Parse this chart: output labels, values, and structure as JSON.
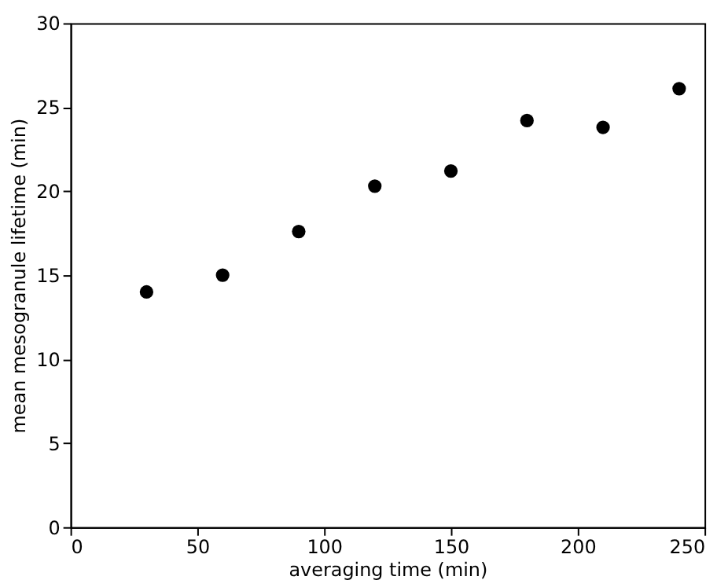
{
  "chart_data": {
    "type": "scatter",
    "xlabel": "averaging time (min)",
    "ylabel": "mean mesogranule lifetime (min)",
    "x": [
      30,
      60,
      90,
      120,
      150,
      180,
      210,
      240
    ],
    "series": [
      {
        "color": "#000000",
        "values": [
          14.0,
          15.0,
          17.6,
          20.3,
          21.2,
          24.2,
          23.8,
          26.1
        ]
      }
    ],
    "xlim": [
      0,
      250
    ],
    "xticks": [
      0,
      50,
      100,
      150,
      200,
      250
    ],
    "ylim": [
      0,
      30
    ],
    "yticks": [
      0,
      5,
      10,
      15,
      20,
      25,
      30
    ],
    "marker": "circle",
    "grid": false
  }
}
